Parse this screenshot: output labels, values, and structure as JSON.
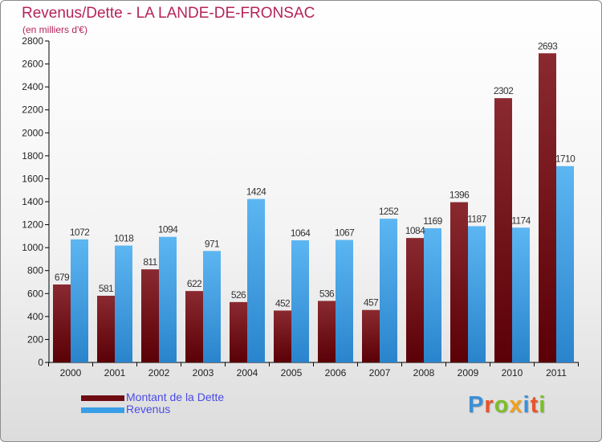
{
  "title": "Revenus/Dette - LA LANDE-DE-FRONSAC",
  "subtitle": "(en milliers d'€)",
  "legend": {
    "dette": "Montant de la Dette",
    "revenus": "Revenus"
  },
  "logo": "Proxiti",
  "colors": {
    "dette": "#6e0c12",
    "revenus": "#3a9ee6",
    "title": "#b5235a",
    "legend_text": "#4a4ae6"
  },
  "chart_data": {
    "type": "bar",
    "categories": [
      "2000",
      "2001",
      "2002",
      "2003",
      "2004",
      "2005",
      "2006",
      "2007",
      "2008",
      "2009",
      "2010",
      "2011"
    ],
    "series": [
      {
        "name": "Montant de la Dette",
        "values": [
          679,
          581,
          811,
          622,
          526,
          452,
          536,
          457,
          1084,
          1396,
          2302,
          2693
        ]
      },
      {
        "name": "Revenus",
        "values": [
          1072,
          1018,
          1094,
          971,
          1424,
          1064,
          1067,
          1252,
          1169,
          1187,
          1174,
          1710
        ]
      }
    ],
    "ylim": [
      0,
      2800
    ],
    "yticks": [
      0,
      200,
      400,
      600,
      800,
      1000,
      1200,
      1400,
      1600,
      1800,
      2000,
      2200,
      2400,
      2600,
      2800
    ],
    "grid": false,
    "legend_position": "bottom-left"
  }
}
